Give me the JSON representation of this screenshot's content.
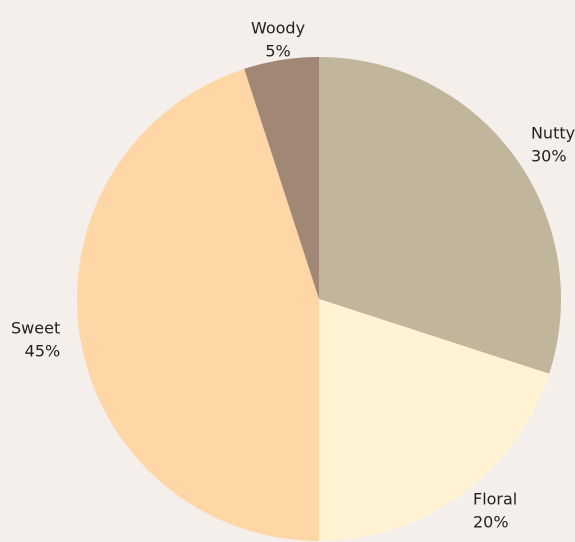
{
  "chart_data": {
    "type": "pie",
    "title": "",
    "start_angle_deg": 0,
    "direction": "clockwise",
    "slices": [
      {
        "label": "Nutty",
        "value": 30,
        "percent_label": "30%",
        "color": "#c1b59b"
      },
      {
        "label": "Floral",
        "value": 20,
        "percent_label": "20%",
        "color": "#fff3d3"
      },
      {
        "label": "Sweet",
        "value": 45,
        "percent_label": "45%",
        "color": "#ffd6a6"
      },
      {
        "label": "Woody",
        "value": 5,
        "percent_label": "5%",
        "color": "#a18876"
      }
    ]
  }
}
